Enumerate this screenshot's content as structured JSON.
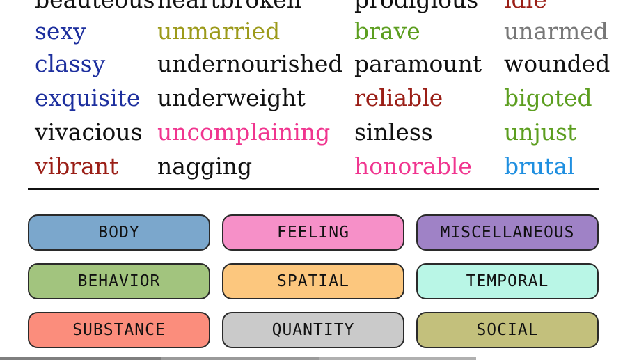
{
  "columns": [
    {
      "words": [
        {
          "text": "beauteous",
          "color": "#111111"
        },
        {
          "text": "sexy",
          "color": "#1d2f9e"
        },
        {
          "text": "classy",
          "color": "#1d2f9e"
        },
        {
          "text": "exquisite",
          "color": "#1d2f9e"
        },
        {
          "text": "vivacious",
          "color": "#111111"
        },
        {
          "text": "vibrant",
          "color": "#9a1e16"
        }
      ]
    },
    {
      "words": [
        {
          "text": "heartbroken",
          "color": "#111111"
        },
        {
          "text": "unmarried",
          "color": "#9c9a1a"
        },
        {
          "text": "undernourished",
          "color": "#111111"
        },
        {
          "text": "underweight",
          "color": "#111111"
        },
        {
          "text": "uncomplaining",
          "color": "#f0358f"
        },
        {
          "text": "nagging",
          "color": "#111111"
        }
      ]
    },
    {
      "words": [
        {
          "text": "prodigious",
          "color": "#111111"
        },
        {
          "text": "brave",
          "color": "#5c9e1f"
        },
        {
          "text": "paramount",
          "color": "#111111"
        },
        {
          "text": "reliable",
          "color": "#9a1e16"
        },
        {
          "text": "sinless",
          "color": "#111111"
        },
        {
          "text": "honorable",
          "color": "#f0358f"
        }
      ]
    },
    {
      "words": [
        {
          "text": "idle",
          "color": "#9a1e16"
        },
        {
          "text": "unarmed",
          "color": "#777777"
        },
        {
          "text": "wounded",
          "color": "#111111"
        },
        {
          "text": "bigoted",
          "color": "#5c9e1f"
        },
        {
          "text": "unjust",
          "color": "#5c9e1f"
        },
        {
          "text": "brutal",
          "color": "#1f8fe0"
        }
      ]
    }
  ],
  "legend": [
    {
      "label": "BODY",
      "color": "#7ba7cc"
    },
    {
      "label": "FEELING",
      "color": "#f690c8"
    },
    {
      "label": "MISCELLANEOUS",
      "color": "#9f82c6"
    },
    {
      "label": "BEHAVIOR",
      "color": "#a2c47e"
    },
    {
      "label": "SPATIAL",
      "color": "#fcc77e"
    },
    {
      "label": "TEMPORAL",
      "color": "#b9f6e6"
    },
    {
      "label": "SUBSTANCE",
      "color": "#fb8d7c"
    },
    {
      "label": "QUANTITY",
      "color": "#cacaca"
    },
    {
      "label": "SOCIAL",
      "color": "#c3c07c"
    }
  ]
}
